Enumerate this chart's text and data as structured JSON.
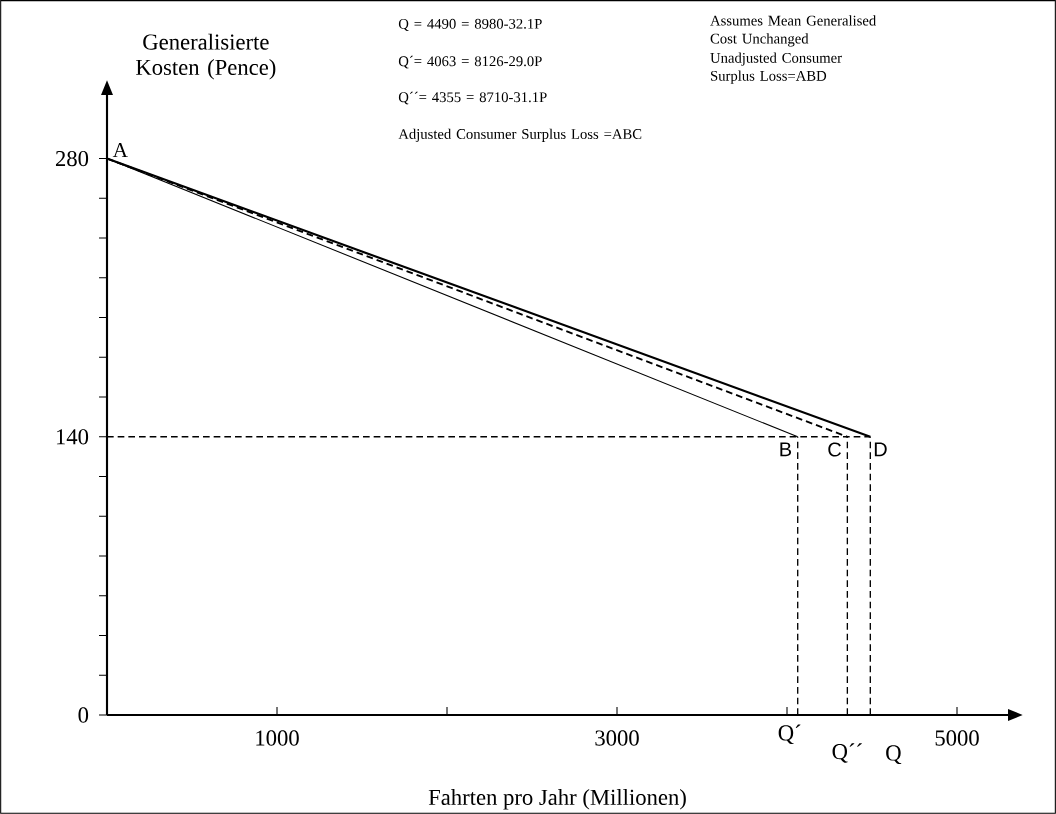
{
  "chart_data": {
    "type": "line",
    "xlabel": "Fahrten pro Jahr (Millionen)",
    "ylabel": "Generalisierte Kosten (Pence)",
    "xlim": [
      0,
      5300
    ],
    "ylim": [
      0,
      312
    ],
    "xticks": [
      {
        "value": 1000,
        "label": "1000"
      },
      {
        "value": 2000,
        "label": null
      },
      {
        "value": 3000,
        "label": "3000"
      },
      {
        "value": 4000,
        "label": null
      },
      {
        "value": 5000,
        "label": "5000"
      }
    ],
    "yticks": [
      0,
      {
        "value": 20,
        "label": null
      },
      {
        "value": 40,
        "label": null
      },
      {
        "value": 60,
        "label": null
      },
      {
        "value": 80,
        "label": null
      },
      {
        "value": 100,
        "label": null
      },
      {
        "value": 120,
        "label": null
      },
      140,
      {
        "value": 160,
        "label": null
      },
      {
        "value": 180,
        "label": null
      },
      {
        "value": 200,
        "label": null
      },
      {
        "value": 220,
        "label": null
      },
      {
        "value": 240,
        "label": null
      },
      {
        "value": 260,
        "label": null
      },
      280
    ],
    "series": [
      {
        "color": "#000000",
        "line_style": "solid",
        "x": [
          0,
          4490
        ],
        "values": [
          280,
          140
        ]
      },
      {
        "color": "#000000",
        "line_style": "solid",
        "x": [
          0,
          4063
        ],
        "values": [
          280,
          140
        ]
      },
      {
        "color": "#000000",
        "line_style": "dashed",
        "x": [
          0,
          4355
        ],
        "values": [
          280,
          140
        ]
      },
      {
        "color": "#000000",
        "line_style": "dashed",
        "x": [
          0,
          4490
        ],
        "values": [
          140,
          140
        ]
      },
      {
        "color": "#000000",
        "line_style": "dashed",
        "x": [
          4063,
          4063
        ],
        "values": [
          0,
          140
        ]
      },
      {
        "color": "#000000",
        "line_style": "dashed",
        "x": [
          4355,
          4355
        ],
        "values": [
          0,
          140
        ]
      },
      {
        "color": "#000000",
        "line_style": "dashed",
        "x": [
          4490,
          4490
        ],
        "values": [
          0,
          140
        ]
      }
    ],
    "annotations": [
      "Q = 4490 = 8980-32.1P",
      "Q´= 4063 = 8126-29.0P",
      "Q´´= 4355 = 8710-31.1P",
      "Adjusted Consumer Surplus Loss =ABC",
      "Assumes Mean Generalised Cost Unchanged",
      "Unadjusted Consumer Surplus Loss=ABD",
      {
        "text": "A",
        "x": 0,
        "y": 280
      },
      {
        "text": "B",
        "x": 4063,
        "y": 140
      },
      {
        "text": "C",
        "x": 4355,
        "y": 140
      },
      {
        "text": "D",
        "x": 4490,
        "y": 140
      },
      {
        "text": "Q´",
        "x": 4063,
        "y": 0
      },
      {
        "text": "Q´´",
        "x": 4355,
        "y": 0
      },
      {
        "text": "Q",
        "x": 4490,
        "y": 0
      }
    ]
  }
}
